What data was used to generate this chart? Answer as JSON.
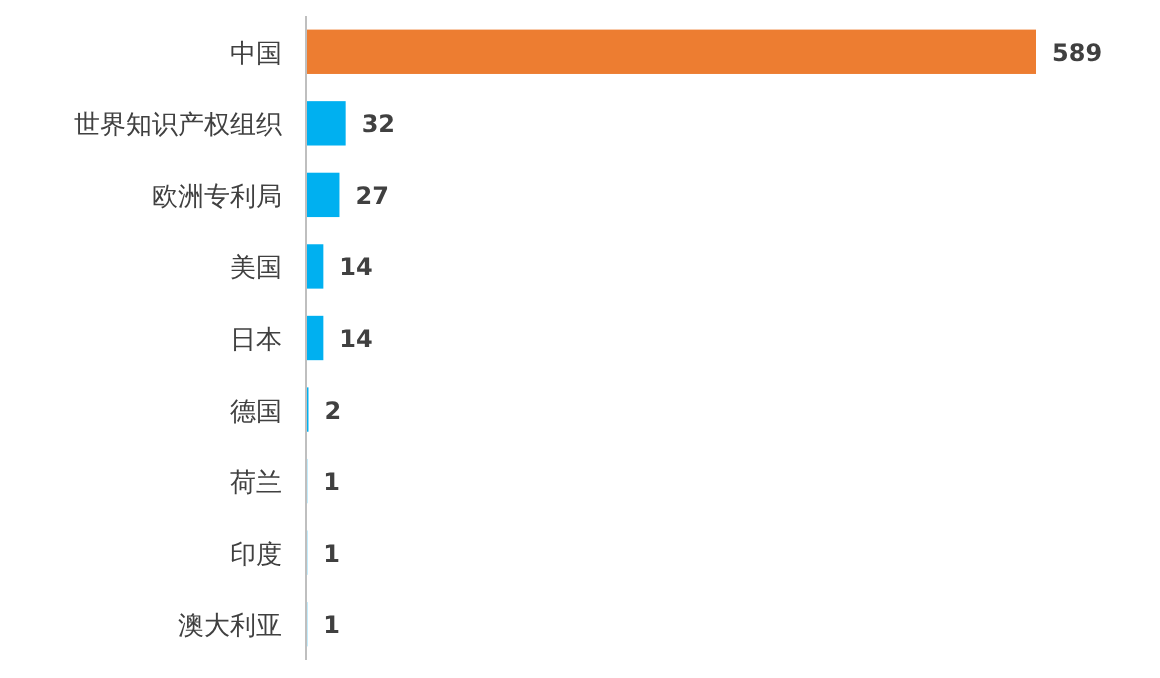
{
  "chart_data": {
    "type": "bar",
    "orientation": "horizontal",
    "categories": [
      "中国",
      "世界知识产权组织",
      "欧洲专利局",
      "美国",
      "日本",
      "德国",
      "荷兰",
      "印度",
      "澳大利亚"
    ],
    "values": [
      589,
      32,
      27,
      14,
      14,
      2,
      1,
      1,
      1
    ],
    "colors": [
      "#ed7d31",
      "#00b0f0",
      "#00b0f0",
      "#00b0f0",
      "#00b0f0",
      "#00b0f0",
      "#00b0f0",
      "#00b0f0",
      "#00b0f0"
    ],
    "data_labels": true
  }
}
